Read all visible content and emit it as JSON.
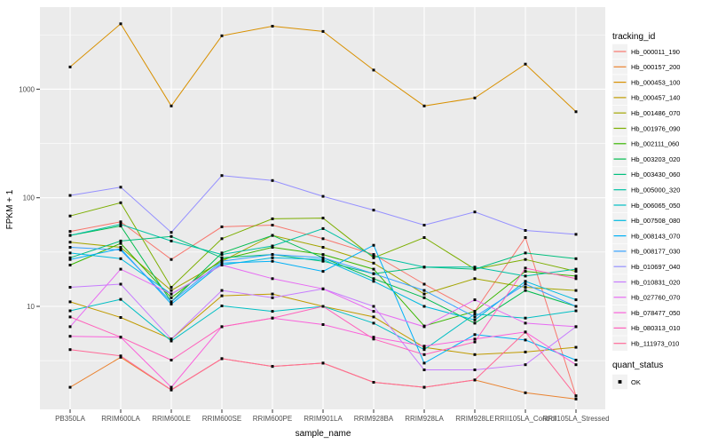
{
  "figure": {
    "background": "#ffffff",
    "panel_background": "#ebebeb",
    "gridline_color": "#ffffff",
    "tick_mark_color": "#333333",
    "tick_label_color": "#4d4d4d",
    "point_color": "#000000",
    "legend_key_background": "#f2f2f2"
  },
  "chart_data": {
    "type": "line",
    "title": "",
    "xlabel": "sample_name",
    "ylabel": "FPKM + 1",
    "y_scale": "log10",
    "y_ticks": [
      10,
      100,
      1000
    ],
    "y_minor_ticks": [
      3.1623,
      31.623,
      316.23,
      3162.3
    ],
    "ylim": [
      1.05,
      5500
    ],
    "grid": "major-and-minor",
    "legend_position": "right",
    "point_shape": "filled-square-black",
    "categories": [
      "PB350LA",
      "RRIM600LA",
      "RRIM600LE",
      "RRIM600SE",
      "RRIM600PE",
      "RRIM901LA",
      "RRIM928BA",
      "RRIM928LA",
      "RRIM928LE",
      "RRII105LA_Control",
      "RRII105LA_Stressed"
    ],
    "series": [
      {
        "name": "Hb_000011_190",
        "color": "#F8766D",
        "values": [
          49,
          60,
          27,
          54,
          56,
          42,
          30,
          16,
          9,
          43,
          1.5
        ]
      },
      {
        "name": "Hb_000157_200",
        "color": "#EA8331",
        "values": [
          1.8,
          3.4,
          1.7,
          3.3,
          2.8,
          3.0,
          2.0,
          1.8,
          2.1,
          1.6,
          1.4
        ]
      },
      {
        "name": "Hb_000453_100",
        "color": "#D89000",
        "values": [
          1600,
          4000,
          700,
          3100,
          3800,
          3400,
          1500,
          700,
          830,
          1700,
          620
        ]
      },
      {
        "name": "Hb_000457_140",
        "color": "#C09B00",
        "values": [
          11,
          7.9,
          5,
          12.5,
          13,
          10,
          8,
          4.2,
          3.6,
          3.8,
          4.2
        ]
      },
      {
        "name": "Hb_001486_070",
        "color": "#A3A500",
        "values": [
          39,
          35,
          14,
          26,
          45,
          35,
          25,
          13,
          18,
          15,
          14
        ]
      },
      {
        "name": "Hb_001976_090",
        "color": "#7CAE00",
        "values": [
          68,
          90,
          15,
          42,
          64,
          65,
          28,
          43,
          22,
          27,
          21
        ]
      },
      {
        "name": "Hb_002111_060",
        "color": "#39B600",
        "values": [
          24,
          38,
          12,
          27,
          35,
          30,
          22,
          6.6,
          9,
          21,
          19
        ]
      },
      {
        "name": "Hb_003203_020",
        "color": "#00BB4E",
        "values": [
          45,
          55,
          11,
          31,
          45,
          28,
          18,
          12,
          7,
          14,
          10
        ]
      },
      {
        "name": "Hb_003430_060",
        "color": "#00BF7D",
        "values": [
          28,
          40,
          44,
          28,
          30,
          26,
          20,
          23,
          22,
          31,
          27.5
        ]
      },
      {
        "name": "Hb_005000_320",
        "color": "#00C1A3",
        "values": [
          45,
          57,
          40,
          30,
          36,
          52,
          29,
          23,
          23,
          19,
          22
        ]
      },
      {
        "name": "Hb_006065_050",
        "color": "#00BFC4",
        "values": [
          9.1,
          11.6,
          4.8,
          10.1,
          9,
          10,
          7,
          4,
          8.5,
          7.8,
          9.1
        ]
      },
      {
        "name": "Hb_007508_080",
        "color": "#00BAE0",
        "values": [
          31,
          27.5,
          13,
          24,
          28,
          27,
          17,
          10,
          7.5,
          17,
          11.5
        ]
      },
      {
        "name": "Hb_008143_070",
        "color": "#00B0F6",
        "values": [
          27,
          34,
          10.5,
          25,
          26,
          21,
          36.5,
          3,
          5.5,
          4.9,
          3.2
        ]
      },
      {
        "name": "Hb_008177_030",
        "color": "#35A2FF",
        "values": [
          35,
          33,
          11,
          26,
          30,
          28,
          20,
          14,
          8,
          16,
          10
        ]
      },
      {
        "name": "Hb_010697_040",
        "color": "#9590FF",
        "values": [
          105,
          125,
          48,
          160,
          144,
          103,
          77,
          56,
          74,
          50,
          46
        ]
      },
      {
        "name": "Hb_010831_020",
        "color": "#C77CFF",
        "values": [
          15,
          16,
          5,
          14,
          12,
          14.5,
          10,
          2.6,
          2.6,
          2.9,
          6.5
        ]
      },
      {
        "name": "Hb_027760_070",
        "color": "#E76BF3",
        "values": [
          6.5,
          22,
          13,
          24,
          18,
          14.5,
          9,
          6.5,
          11.5,
          7,
          6.5
        ]
      },
      {
        "name": "Hb_078477_050",
        "color": "#FA62DB",
        "values": [
          5.3,
          5.2,
          1.8,
          6.5,
          7.8,
          6.8,
          5.2,
          4.3,
          5,
          5.8,
          2.9
        ]
      },
      {
        "name": "Hb_080313_010",
        "color": "#FF62BC",
        "values": [
          8,
          5.2,
          3.2,
          6.5,
          7.8,
          10,
          5,
          3.6,
          4.7,
          22.5,
          18
        ]
      },
      {
        "name": "Hb_111973_010",
        "color": "#FF6A98",
        "values": [
          4.0,
          3.5,
          1.7,
          3.3,
          2.8,
          3.0,
          2.0,
          1.8,
          2.1,
          5.8,
          1.5
        ]
      }
    ],
    "legends": {
      "tracking_id": {
        "title": "tracking_id"
      },
      "quant_status": {
        "title": "quant_status",
        "items": [
          {
            "label": "OK"
          }
        ]
      }
    }
  }
}
